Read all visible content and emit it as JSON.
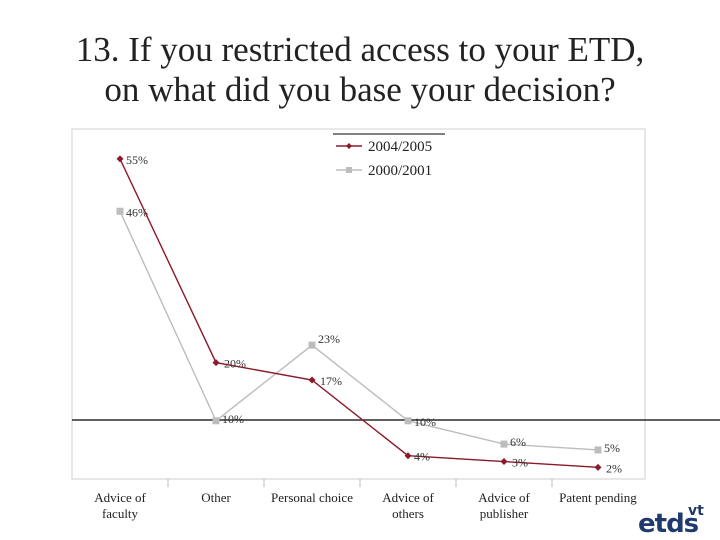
{
  "title": {
    "line1": "13. If you restricted access to your ETD,",
    "line2": "on what did you base your decision?"
  },
  "logo": {
    "main": "etds",
    "sup": "vt"
  },
  "chart_data": {
    "type": "line",
    "categories": [
      [
        "Advice of",
        "faculty"
      ],
      [
        "Other"
      ],
      [
        "Personal choice"
      ],
      [
        "Advice of",
        "others"
      ],
      [
        "Advice of",
        "publisher"
      ],
      [
        "Patent pending"
      ]
    ],
    "series": [
      {
        "name": "2004/2005",
        "values": [
          55,
          20,
          17,
          4,
          3,
          2
        ],
        "labels": [
          "55%",
          "20%",
          "17%",
          "4%",
          "3%",
          "2%"
        ],
        "color": "#8b1a2b",
        "marker": "diamond"
      },
      {
        "name": "2000/2001",
        "values": [
          46,
          10,
          23,
          10,
          6,
          5
        ],
        "labels": [
          "46%",
          "10%",
          "23%",
          "10%",
          "6%",
          "5%"
        ],
        "color": "#bdbdbd",
        "marker": "square"
      }
    ],
    "ylim": [
      0,
      60
    ],
    "grid": false,
    "legend": "top-center"
  }
}
